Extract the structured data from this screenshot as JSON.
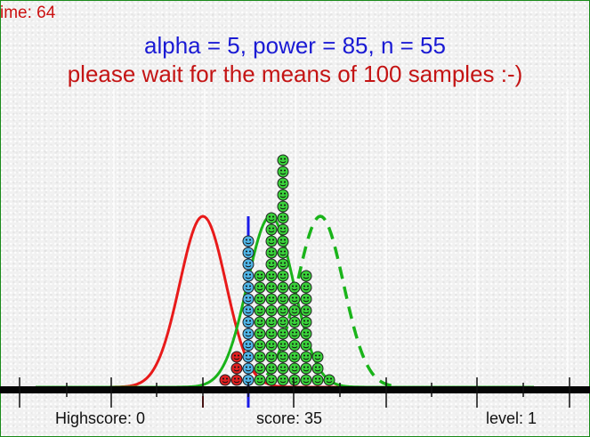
{
  "hud": {
    "timer": "ime: 64",
    "params": "alpha = 5, power = 85, n = 55",
    "message": "please wait for the means of 100 samples :-)",
    "highscore": "Highscore: 0",
    "score": "score: 35",
    "level": "level: 1"
  },
  "colors": {
    "null_curve": "#e81a1a",
    "sample_curve": "#1ab41a",
    "alt_curve_dashed": "#1ab41a",
    "critical_line": "#1a1ae8",
    "param_text": "#1a1ad4",
    "message_text": "#c41414",
    "balls_green": "#3ad13a",
    "balls_blue": "#4fb4e6",
    "balls_red": "#e02020"
  },
  "icons": {
    "ball": "smiley-ball-icon"
  },
  "chart_data": {
    "type": "scatter",
    "description_free": true,
    "null_mean": 228,
    "sample_mean": 304,
    "alt_mean": 360,
    "critical_value": 279,
    "ball_stacks": [
      {
        "x": 253,
        "count": 1,
        "color": "red"
      },
      {
        "x": 266,
        "count": 3,
        "color": "red"
      },
      {
        "x": 279,
        "count": 13,
        "color": "blue"
      },
      {
        "x": 292,
        "count": 10,
        "color": "green"
      },
      {
        "x": 305,
        "count": 15,
        "color": "green"
      },
      {
        "x": 318,
        "count": 20,
        "color": "green"
      },
      {
        "x": 331,
        "count": 9,
        "color": "green"
      },
      {
        "x": 344,
        "count": 10,
        "color": "green"
      },
      {
        "x": 357,
        "count": 3,
        "color": "green"
      },
      {
        "x": 370,
        "count": 1,
        "color": "green"
      }
    ]
  }
}
